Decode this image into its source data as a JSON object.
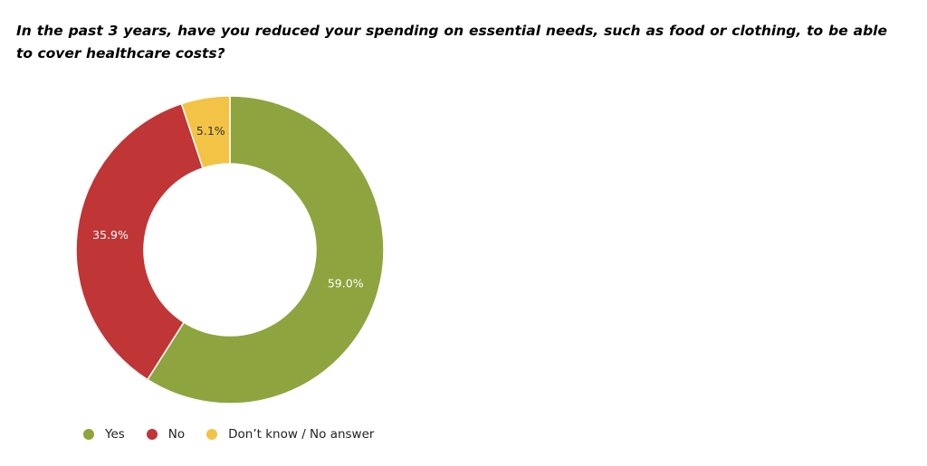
{
  "question": "In the past 3 years, have you reduced your spending on essential needs, such as food or clothing, to be able to cover healthcare  costs?",
  "chart_data": {
    "type": "pie",
    "subtype": "donut",
    "title": "In the past 3 years, have you reduced your spending on essential needs, such as food or clothing, to be able to cover healthcare  costs?",
    "slices": [
      {
        "name": "Yes",
        "value": 59.0,
        "label": "59.0%",
        "color": "#8ea43f",
        "label_color": "#ffffff"
      },
      {
        "name": "No",
        "value": 35.9,
        "label": "35.9%",
        "color": "#c03535",
        "label_color": "#ffffff"
      },
      {
        "name": "Don’t know / No answer",
        "value": 5.1,
        "label": "5.1%",
        "color": "#f3c345",
        "label_color": "#333333"
      }
    ],
    "start": "12 o'clock",
    "direction": "clockwise",
    "legend_position": "bottom-left"
  }
}
